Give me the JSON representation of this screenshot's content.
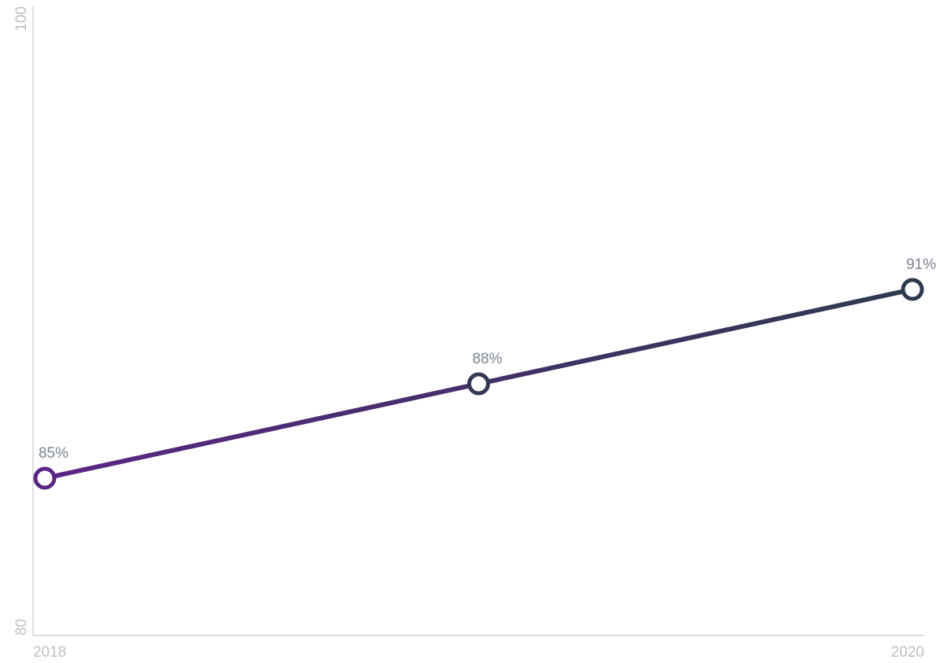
{
  "chart_data": {
    "type": "line",
    "categories": [
      "2018",
      null,
      "2020"
    ],
    "series": [
      {
        "values": [
          85,
          88,
          91
        ],
        "value_labels": [
          "85%",
          "88%",
          "91%"
        ],
        "gradient": [
          "#5a2584",
          "#2d3a4f"
        ]
      }
    ],
    "ylim": [
      80,
      100
    ],
    "yticks": [
      80,
      100
    ]
  }
}
